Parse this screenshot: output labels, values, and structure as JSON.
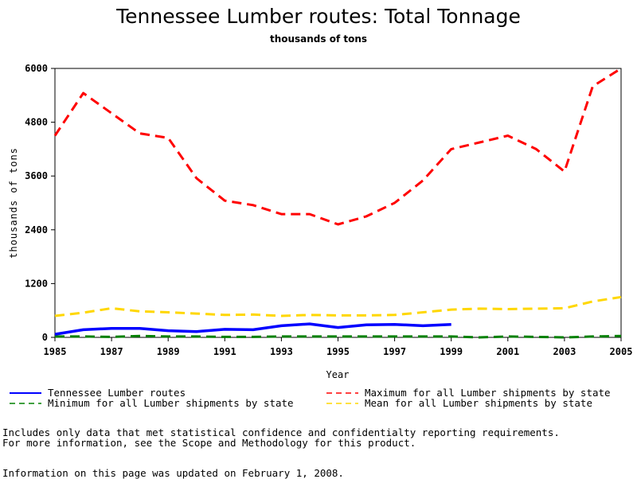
{
  "chart_data": {
    "type": "line",
    "title": "Tennessee Lumber routes: Total Tonnage",
    "subtitle": "thousands of tons",
    "xlabel": "Year",
    "ylabel": "thousands of tons",
    "xlim": [
      1985,
      2005
    ],
    "ylim": [
      0,
      6000
    ],
    "x_ticks": [
      1985,
      1987,
      1989,
      1991,
      1993,
      1995,
      1997,
      1999,
      2001,
      2003,
      2005
    ],
    "y_ticks": [
      0,
      1200,
      2400,
      3600,
      4800,
      6000
    ],
    "grid": false,
    "legend_position": "bottom",
    "x": [
      1985,
      1986,
      1987,
      1988,
      1989,
      1990,
      1991,
      1992,
      1993,
      1994,
      1995,
      1996,
      1997,
      1998,
      1999,
      2000,
      2001,
      2002,
      2003,
      2004,
      2005
    ],
    "series": [
      {
        "name": "Tennessee Lumber routes",
        "color": "#0000ff",
        "style": "solid",
        "values": [
          70,
          170,
          200,
          200,
          150,
          130,
          180,
          170,
          260,
          300,
          220,
          280,
          290,
          260,
          290,
          null,
          null,
          null,
          null,
          null,
          null
        ]
      },
      {
        "name": "Maximum for all Lumber shipments by state",
        "color": "#ff0000",
        "style": "dashed",
        "values": [
          4500,
          5450,
          5000,
          4550,
          4450,
          3550,
          3050,
          2950,
          2750,
          2750,
          2520,
          2700,
          3000,
          3500,
          4200,
          4350,
          4500,
          4200,
          3700,
          5600,
          6000
        ]
      },
      {
        "name": "Minimum for all Lumber shipments by state",
        "color": "#008000",
        "style": "dashed",
        "values": [
          20,
          20,
          10,
          30,
          20,
          20,
          10,
          10,
          20,
          20,
          20,
          20,
          20,
          20,
          20,
          0,
          20,
          10,
          0,
          20,
          30
        ]
      },
      {
        "name": "Mean for all Lumber shipments by state",
        "color": "#ffd700",
        "style": "dashed",
        "values": [
          480,
          550,
          650,
          580,
          560,
          530,
          500,
          510,
          480,
          500,
          490,
          490,
          500,
          560,
          620,
          640,
          630,
          640,
          650,
          800,
          900
        ]
      }
    ]
  },
  "footer": {
    "note_line1": "Includes only data that met statistical confidence and confidentialty reporting requirements.",
    "note_line2": "For more information, see the Scope and Methodology for this product.",
    "updated": "Information on this page was updated on February 1, 2008."
  }
}
